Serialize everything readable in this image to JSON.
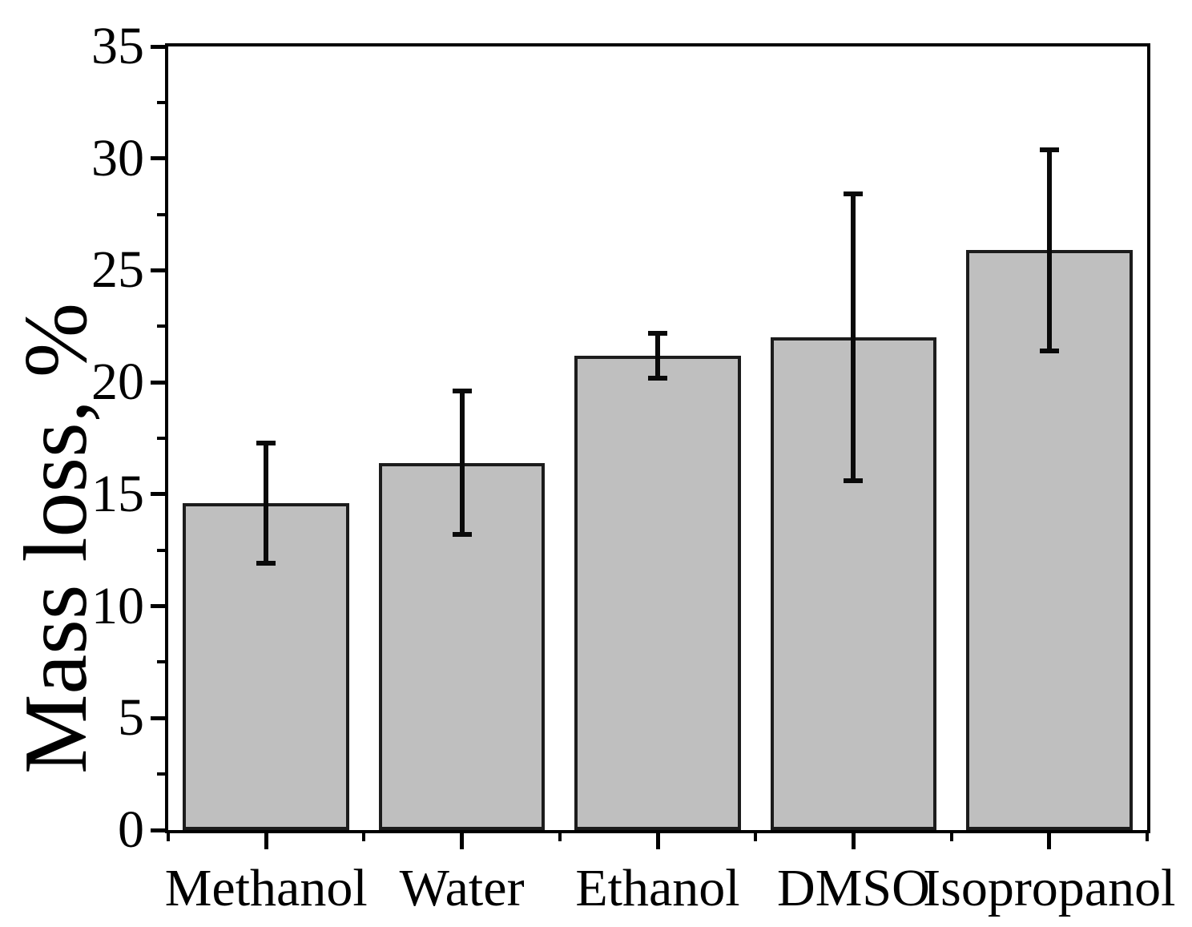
{
  "figure": {
    "background": "#ffffff",
    "axis_color": "#000000",
    "text_color": "#000000"
  },
  "chart_data": {
    "type": "bar",
    "title": "",
    "xlabel": "",
    "ylabel": "Mass loss, %",
    "categories": [
      "Methanol",
      "Water",
      "Ethanol",
      "DMSO",
      "Isopropanol"
    ],
    "values": [
      14.6,
      16.4,
      21.2,
      22.0,
      25.9
    ],
    "errors": [
      2.7,
      3.2,
      1.0,
      6.4,
      4.5
    ],
    "error_tops": [
      17.3,
      19.6,
      22.2,
      28.4,
      30.4
    ],
    "error_bottoms": [
      11.9,
      13.2,
      20.2,
      15.6,
      21.4
    ],
    "ylim": [
      0,
      35
    ],
    "y_major_ticks": [
      0,
      5,
      10,
      15,
      20,
      25,
      30,
      35
    ],
    "y_minor_step": 2.5,
    "grid": false,
    "legend": "none",
    "frame": "box",
    "bar_fill": "#bfbfbf",
    "bar_edge": "#1c1c1c",
    "error_color": "#0a0a0a",
    "bar_width_fraction": 0.85
  }
}
